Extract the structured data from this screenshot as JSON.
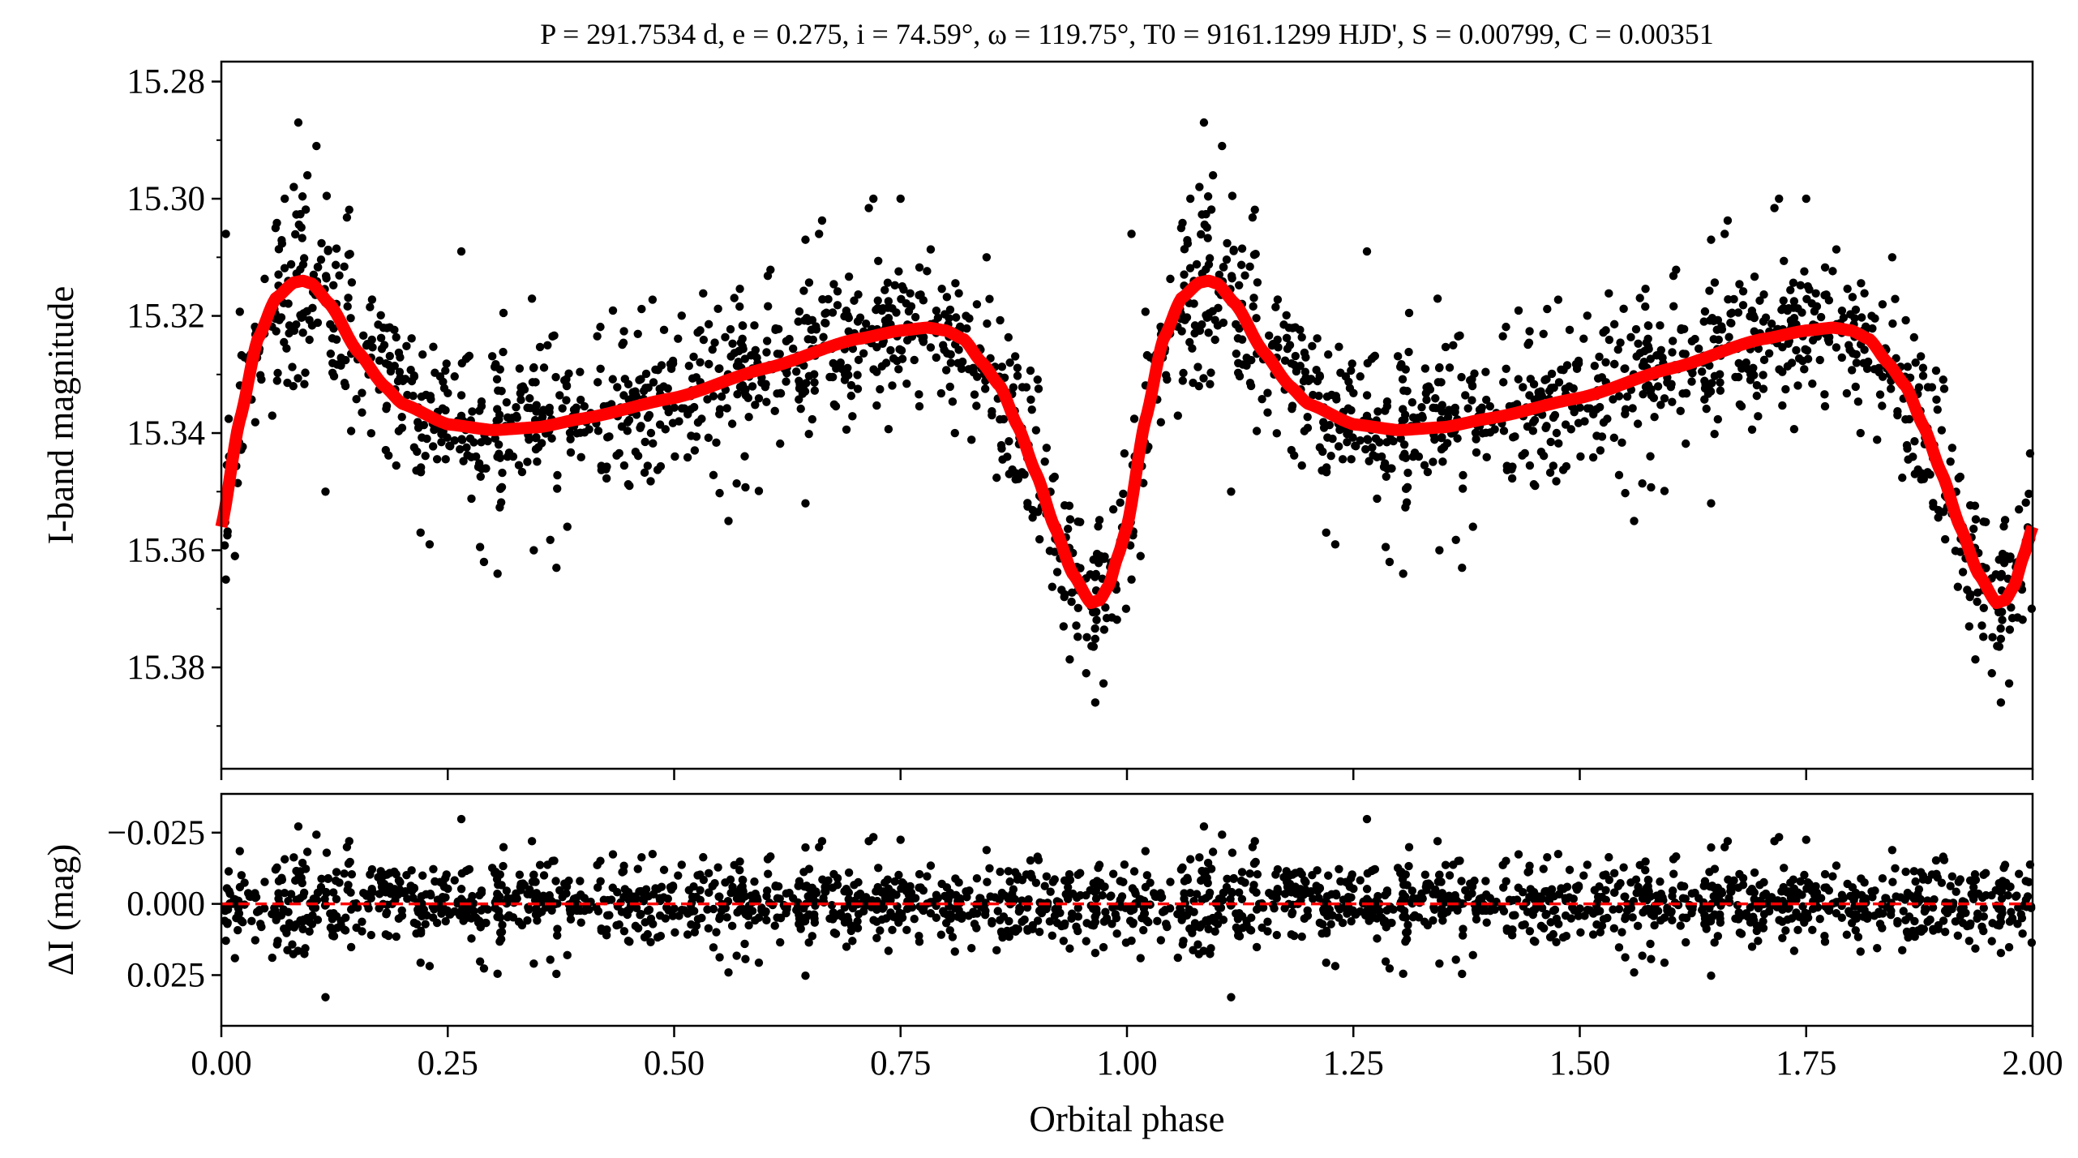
{
  "chart_data": [
    {
      "type": "scatter",
      "panel": "top",
      "title": "P = 291.7534 d, e = 0.275, i = 74.59°, ω = 119.75°, T0 = 9161.1299 HJD', S = 0.00799, C = 0.00351",
      "xlabel": "",
      "ylabel": "I-band magnitude",
      "xlim": [
        0,
        2
      ],
      "ylim": [
        15.3973,
        15.2766
      ],
      "y_inverted": true,
      "yticks": [
        "15.28",
        "15.30",
        "15.32",
        "15.34",
        "15.36",
        "15.38"
      ],
      "ytick_values": [
        15.28,
        15.3,
        15.32,
        15.34,
        15.36,
        15.38
      ],
      "grid": false,
      "series": [
        {
          "name": "Observed",
          "kind": "points",
          "color": "#000000",
          "note_phase_repeated": true,
          "n_points_per_cycle": 1000,
          "scatter_sigma": 0.0065,
          "outliers": [
            [
              0.085,
              15.287
            ],
            [
              0.105,
              15.291
            ],
            [
              0.095,
              15.296
            ],
            [
              0.07,
              15.3
            ],
            [
              0.08,
              15.298
            ],
            [
              0.115,
              15.35
            ],
            [
              0.265,
              15.309
            ],
            [
              0.305,
              15.364
            ],
            [
              0.29,
              15.362
            ],
            [
              0.345,
              15.36
            ],
            [
              0.37,
              15.363
            ],
            [
              0.22,
              15.357
            ],
            [
              0.23,
              15.359
            ],
            [
              0.56,
              15.355
            ],
            [
              0.645,
              15.352
            ],
            [
              0.72,
              15.3
            ],
            [
              0.75,
              15.3
            ],
            [
              0.66,
              15.306
            ],
            [
              0.645,
              15.307
            ],
            [
              0.965,
              15.386
            ],
            [
              0.955,
              15.381
            ],
            [
              0.93,
              15.373
            ],
            [
              0.005,
              15.365
            ],
            [
              0.015,
              15.361
            ],
            [
              0.87,
              15.347
            ],
            [
              0.005,
              15.306
            ],
            [
              0.845,
              15.31
            ],
            [
              0.81,
              15.34
            ]
          ]
        },
        {
          "name": "Model",
          "kind": "line",
          "color": "#ff0000",
          "phase": [
            0.0,
            0.02,
            0.04,
            0.06,
            0.08,
            0.09,
            0.1,
            0.12,
            0.15,
            0.18,
            0.2,
            0.25,
            0.3,
            0.35,
            0.4,
            0.5,
            0.6,
            0.7,
            0.75,
            0.78,
            0.8,
            0.82,
            0.84,
            0.86,
            0.88,
            0.9,
            0.92,
            0.94,
            0.96,
            0.97,
            0.98,
            0.99,
            1.0
          ],
          "mag": [
            15.356,
            15.338,
            15.324,
            15.317,
            15.3143,
            15.314,
            15.3145,
            15.318,
            15.326,
            15.332,
            15.335,
            15.3385,
            15.3395,
            15.339,
            15.3375,
            15.334,
            15.329,
            15.324,
            15.3225,
            15.322,
            15.3225,
            15.324,
            15.328,
            15.332,
            15.339,
            15.347,
            15.356,
            15.364,
            15.369,
            15.3685,
            15.366,
            15.361,
            15.356
          ]
        }
      ]
    },
    {
      "type": "scatter",
      "panel": "bottom",
      "xlabel": "Orbital phase",
      "ylabel": "ΔI (mag)",
      "xlim": [
        0,
        2
      ],
      "ylim": [
        0.0428,
        -0.0386
      ],
      "y_inverted": true,
      "yticks": [
        "−0.025",
        "0.000",
        "0.025"
      ],
      "ytick_values": [
        -0.025,
        0.0,
        0.025
      ],
      "xticks": [
        "0.00",
        "0.25",
        "0.50",
        "0.75",
        "1.00",
        "1.25",
        "1.50",
        "1.75",
        "2.00"
      ],
      "xtick_values": [
        0,
        0.25,
        0.5,
        0.75,
        1.0,
        1.25,
        1.5,
        1.75,
        2.0
      ],
      "series": [
        {
          "name": "Residuals",
          "kind": "points",
          "color": "#000000",
          "source": "observed minus model"
        },
        {
          "name": "Zero line",
          "kind": "dashed-line",
          "color": "#ff0000",
          "value": 0.0
        }
      ]
    }
  ]
}
